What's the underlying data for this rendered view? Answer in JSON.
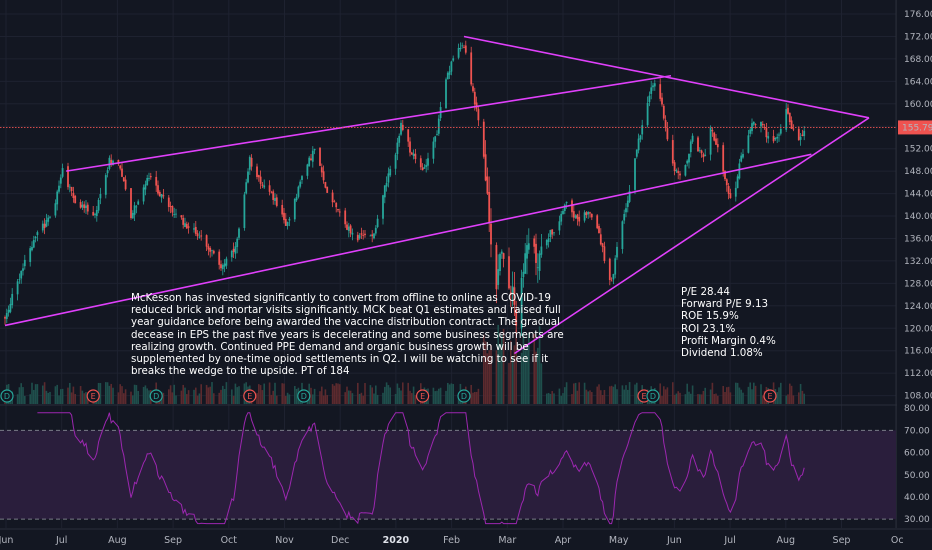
{
  "chart_data": {
    "type": "candlestick",
    "ticker": "MCK",
    "price_axis": {
      "ticks": [
        108,
        112,
        116,
        120,
        124,
        128,
        132,
        136,
        140,
        144,
        148,
        152,
        156,
        160,
        164,
        168,
        172,
        176
      ],
      "range": [
        106.5,
        178.5
      ]
    },
    "time_axis": {
      "labels": [
        "Jun",
        "Jul",
        "Aug",
        "Sep",
        "Oct",
        "Nov",
        "Dec",
        "2020",
        "Feb",
        "Mar",
        "Apr",
        "May",
        "Jun",
        "Jul",
        "Aug",
        "Sep",
        "Oc"
      ],
      "bold_label": "2020"
    },
    "last_price": {
      "value": 155.79,
      "label": "155.79"
    },
    "ohlc_anchors": [
      {
        "d": 0,
        "p": 122
      },
      {
        "d": 15,
        "p": 135
      },
      {
        "d": 27,
        "p": 141
      },
      {
        "d": 32,
        "p": 148
      },
      {
        "d": 38,
        "p": 143
      },
      {
        "d": 50,
        "p": 140
      },
      {
        "d": 58,
        "p": 150
      },
      {
        "d": 64,
        "p": 149
      },
      {
        "d": 70,
        "p": 140
      },
      {
        "d": 80,
        "p": 147
      },
      {
        "d": 88,
        "p": 143
      },
      {
        "d": 95,
        "p": 140
      },
      {
        "d": 110,
        "p": 136
      },
      {
        "d": 120,
        "p": 131
      },
      {
        "d": 128,
        "p": 134
      },
      {
        "d": 132,
        "p": 141
      },
      {
        "d": 136,
        "p": 150
      },
      {
        "d": 144,
        "p": 145
      },
      {
        "d": 150,
        "p": 143
      },
      {
        "d": 156,
        "p": 138
      },
      {
        "d": 165,
        "p": 147
      },
      {
        "d": 172,
        "p": 152
      },
      {
        "d": 178,
        "p": 145
      },
      {
        "d": 184,
        "p": 142
      },
      {
        "d": 190,
        "p": 138
      },
      {
        "d": 195,
        "p": 136
      },
      {
        "d": 205,
        "p": 137
      },
      {
        "d": 210,
        "p": 144
      },
      {
        "d": 216,
        "p": 150
      },
      {
        "d": 220,
        "p": 156
      },
      {
        "d": 226,
        "p": 151
      },
      {
        "d": 232,
        "p": 148
      },
      {
        "d": 240,
        "p": 155
      },
      {
        "d": 244,
        "p": 163
      },
      {
        "d": 250,
        "p": 169
      },
      {
        "d": 254,
        "p": 171
      },
      {
        "d": 257,
        "p": 168
      },
      {
        "d": 260,
        "p": 162
      },
      {
        "d": 264,
        "p": 155
      },
      {
        "d": 267,
        "p": 147
      },
      {
        "d": 270,
        "p": 135
      },
      {
        "d": 273,
        "p": 128
      },
      {
        "d": 276,
        "p": 135
      },
      {
        "d": 279,
        "p": 124
      },
      {
        "d": 282,
        "p": 129
      },
      {
        "d": 284,
        "p": 121
      },
      {
        "d": 287,
        "p": 130
      },
      {
        "d": 292,
        "p": 136
      },
      {
        "d": 296,
        "p": 131
      },
      {
        "d": 300,
        "p": 136
      },
      {
        "d": 306,
        "p": 138
      },
      {
        "d": 312,
        "p": 143
      },
      {
        "d": 318,
        "p": 139
      },
      {
        "d": 324,
        "p": 141
      },
      {
        "d": 330,
        "p": 137
      },
      {
        "d": 334,
        "p": 131
      },
      {
        "d": 337,
        "p": 128
      },
      {
        "d": 341,
        "p": 136
      },
      {
        "d": 346,
        "p": 143
      },
      {
        "d": 351,
        "p": 152
      },
      {
        "d": 355,
        "p": 158
      },
      {
        "d": 358,
        "p": 162
      },
      {
        "d": 362,
        "p": 164
      },
      {
        "d": 366,
        "p": 158
      },
      {
        "d": 370,
        "p": 150
      },
      {
        "d": 376,
        "p": 146
      },
      {
        "d": 382,
        "p": 154
      },
      {
        "d": 388,
        "p": 150
      },
      {
        "d": 392,
        "p": 156
      },
      {
        "d": 396,
        "p": 152
      },
      {
        "d": 400,
        "p": 146
      },
      {
        "d": 404,
        "p": 142
      },
      {
        "d": 408,
        "p": 149
      },
      {
        "d": 414,
        "p": 156
      },
      {
        "d": 420,
        "p": 157
      },
      {
        "d": 426,
        "p": 152
      },
      {
        "d": 430,
        "p": 155
      },
      {
        "d": 434,
        "p": 159
      },
      {
        "d": 438,
        "p": 155
      },
      {
        "d": 440,
        "p": 152
      },
      {
        "d": 444,
        "p": 155.79
      }
    ],
    "earnings_markers": [
      {
        "d": 0,
        "type": "D"
      },
      {
        "d": 49,
        "type": "E"
      },
      {
        "d": 84,
        "type": "D"
      },
      {
        "d": 136,
        "type": "E"
      },
      {
        "d": 166,
        "type": "D"
      },
      {
        "d": 232,
        "type": "E"
      },
      {
        "d": 255,
        "type": "D"
      },
      {
        "d": 355,
        "type": "E"
      },
      {
        "d": 360,
        "type": "D"
      },
      {
        "d": 425,
        "type": "E"
      }
    ],
    "trendlines": [
      {
        "name": "upper-channel",
        "from": {
          "d": 34,
          "p": 148
        },
        "to": {
          "d": 370,
          "p": 165
        }
      },
      {
        "name": "lower-channel",
        "from": {
          "d": 0,
          "p": 120.5
        },
        "to": {
          "d": 448,
          "p": 151
        }
      },
      {
        "name": "wedge-top",
        "from": {
          "d": 255,
          "p": 172
        },
        "to": {
          "d": 480,
          "p": 157.5
        }
      },
      {
        "name": "wedge-bottom",
        "from": {
          "d": 283,
          "p": 115.5
        },
        "to": {
          "d": 480,
          "p": 157.5
        }
      }
    ],
    "rsi": {
      "ticks": [
        30,
        40,
        50,
        60,
        70,
        80
      ],
      "upper_band": 70,
      "lower_band": 30,
      "range": [
        26,
        81
      ]
    },
    "annotation": "McKesson has invested significantly to convert from offline to online as COVID-19\nreduced brick and mortar visits significantly. MCK beat Q1 estimates and raised full\nyear guidance before being awarded the vaccine distribution contract. The gradual\ndecease in EPS the past five years is decelerating and some business segments are\nrealizing growth. Continued PPE demand and organic business growth will be\nsupplemented by one-time opiod settlements in Q2. I will be watching to see if it\nbreaks the wedge to the upside. PT of 184",
    "fundamentals": "P/E 28.44\nForward P/E 9.13\nROE 15.9%\nROI 23.1%\nProfit Margin 0.4%\nDividend 1.08%"
  },
  "colors": {
    "background": "#131722",
    "grid": "#1e2230",
    "up": "#26a69a",
    "down": "#ef5350",
    "trendline": "#e040fb",
    "rsi_line": "#9c27b0",
    "rsi_fill": "#2a1e3c",
    "last_price_line": "#ef5350",
    "axis_text": "#b2b5be"
  }
}
